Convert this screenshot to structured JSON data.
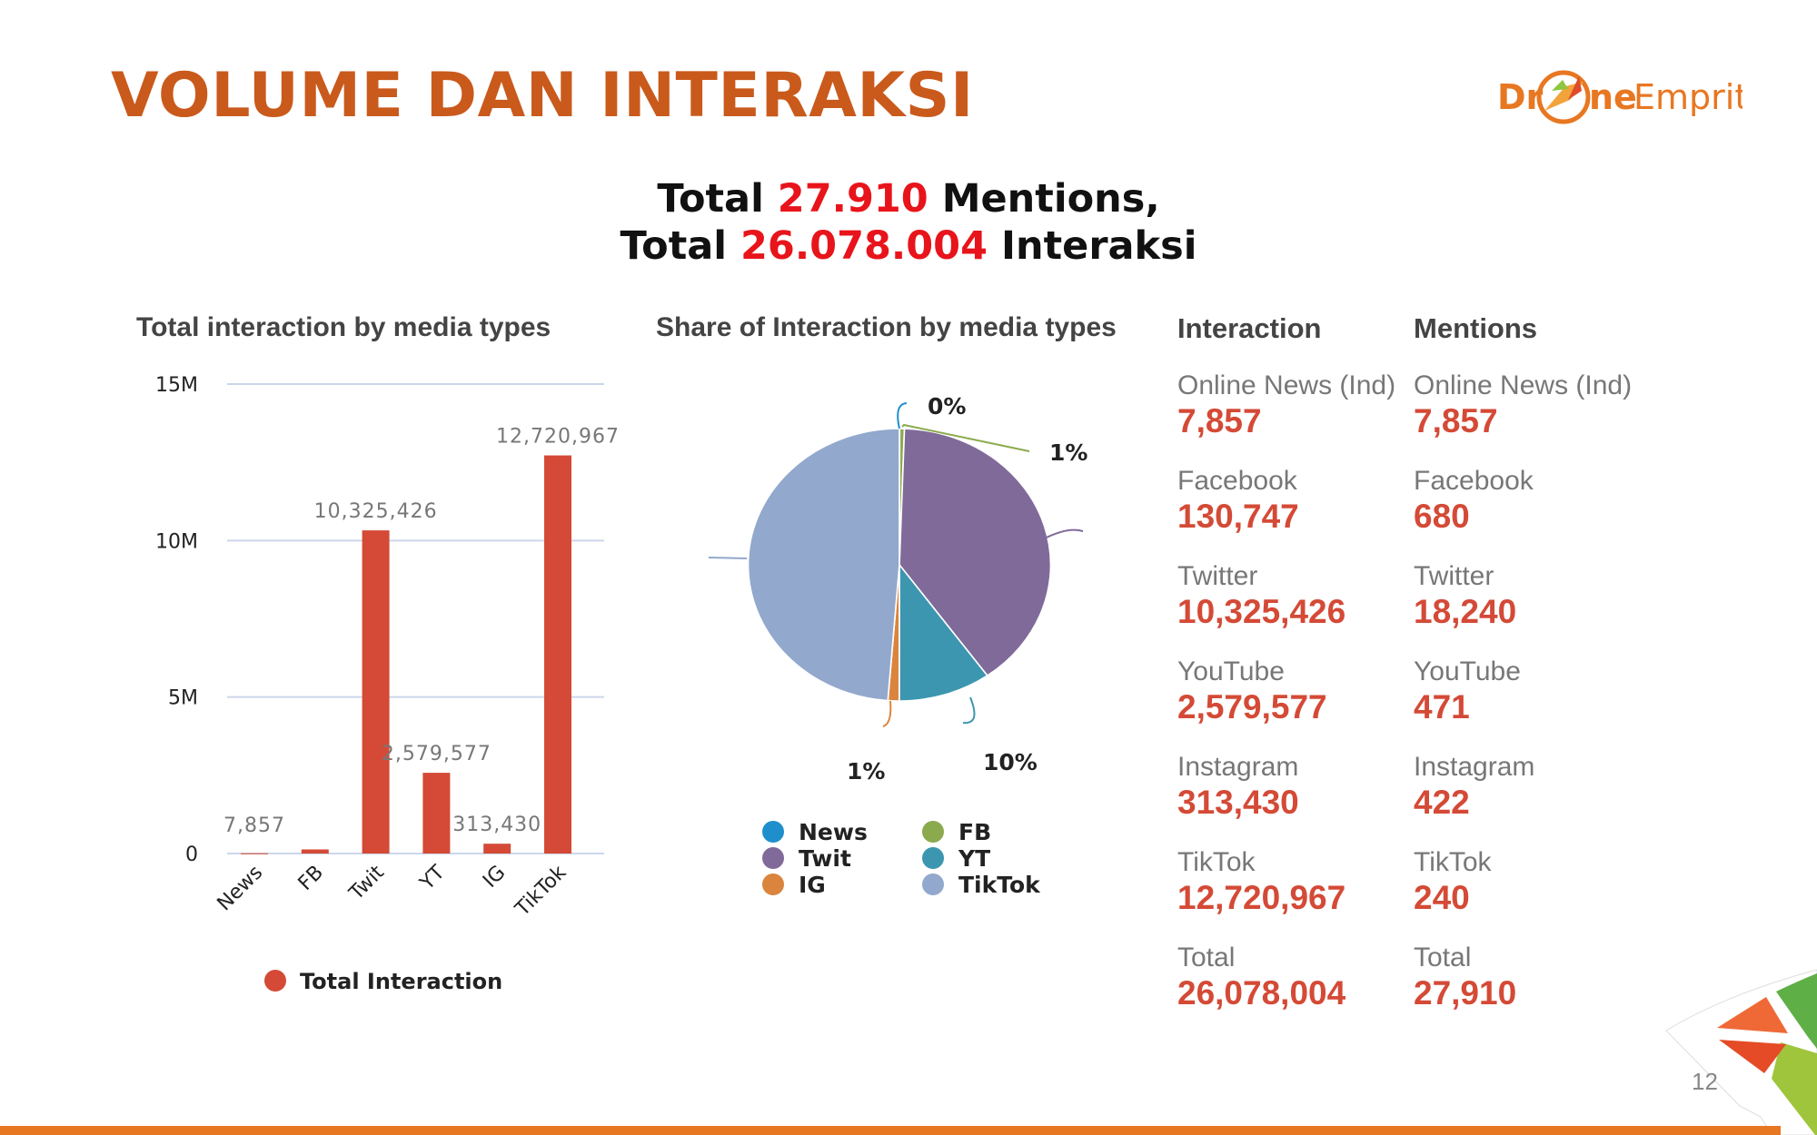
{
  "header": {
    "title": "VOLUME DAN INTERAKSI",
    "logo_text": "DroneEmprit"
  },
  "summary": {
    "line1_prefix": "Total ",
    "line1_value": "27.910",
    "line1_suffix": " Mentions,",
    "line2_prefix": "Total ",
    "line2_value": "26.078.004",
    "line2_suffix": " Interaksi"
  },
  "chart_data": [
    {
      "type": "bar",
      "title": "Total interaction by media types",
      "categories": [
        "News",
        "FB",
        "Twit",
        "YT",
        "IG",
        "TikTok"
      ],
      "values": [
        7857,
        130747,
        10325426,
        2579577,
        313430,
        12720967
      ],
      "data_labels": [
        "7,857",
        "",
        "10,325,426",
        "2,579,577",
        "313,430",
        "12,720,967"
      ],
      "yticks": [
        "0",
        "5M",
        "10M",
        "15M"
      ],
      "ylim": [
        0,
        15000000
      ],
      "legend": "Total Interaction",
      "legend_position": "bottom",
      "color": "#D44A36",
      "grid": true
    },
    {
      "type": "pie",
      "title": "Share of Interaction by media types",
      "categories": [
        "News",
        "FB",
        "Twit",
        "YT",
        "IG",
        "TikTok"
      ],
      "values": [
        7857,
        130747,
        10325426,
        2579577,
        313430,
        12720967
      ],
      "labels": [
        "0%",
        "1%",
        "",
        "10%",
        "1%",
        ""
      ],
      "colors": [
        "#1F8FCC",
        "#8BAA4E",
        "#806A9A",
        "#3C96B0",
        "#DB843D",
        "#92A8CD"
      ],
      "legend_position": "bottom"
    }
  ],
  "interaction": {
    "header": "Interaction",
    "items": [
      {
        "label": "Online News (Ind)",
        "value": "7,857"
      },
      {
        "label": "Facebook",
        "value": "130,747"
      },
      {
        "label": "Twitter",
        "value": "10,325,426"
      },
      {
        "label": "YouTube",
        "value": "2,579,577"
      },
      {
        "label": "Instagram",
        "value": "313,430"
      },
      {
        "label": "TikTok",
        "value": "12,720,967"
      },
      {
        "label": "Total",
        "value": "26,078,004"
      }
    ]
  },
  "mentions": {
    "header": "Mentions",
    "items": [
      {
        "label": "Online News (Ind)",
        "value": "7,857"
      },
      {
        "label": "Facebook",
        "value": "680"
      },
      {
        "label": "Twitter",
        "value": "18,240"
      },
      {
        "label": "YouTube",
        "value": "471"
      },
      {
        "label": "Instagram",
        "value": "422"
      },
      {
        "label": "TikTok",
        "value": "240"
      },
      {
        "label": "Total",
        "value": "27,910"
      }
    ]
  },
  "footer": {
    "page_number": "12"
  }
}
